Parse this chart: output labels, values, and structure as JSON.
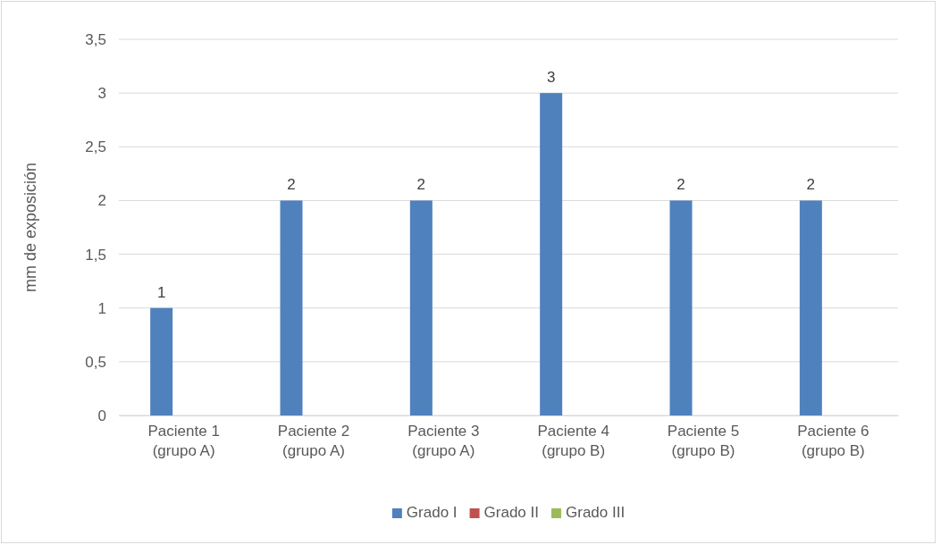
{
  "chart_data": {
    "type": "bar",
    "ylabel": "mm de exposición",
    "categories": [
      "Paciente 1 (grupo A)",
      "Paciente 2 (grupo A)",
      "Paciente 3 (grupo A)",
      "Paciente 4 (grupo B)",
      "Paciente 5 (grupo B)",
      "Paciente 6 (grupo B)"
    ],
    "series": [
      {
        "name": "Grado I",
        "color": "#4f81bd",
        "values": [
          1,
          2,
          2,
          3,
          2,
          2
        ],
        "value_labels": [
          "1",
          "2",
          "2",
          "3",
          "2",
          "2"
        ]
      },
      {
        "name": "Grado II",
        "color": "#c0504d",
        "values": [
          null,
          null,
          null,
          null,
          null,
          null
        ]
      },
      {
        "name": "Grado III",
        "color": "#9bbb59",
        "values": [
          null,
          null,
          null,
          null,
          null,
          null
        ]
      }
    ],
    "ylim": [
      0,
      3.5
    ],
    "yticks": [
      0,
      {
        "value": 0.5,
        "label": "0,5"
      },
      1,
      {
        "value": 1.5,
        "label": "1,5"
      },
      2,
      {
        "value": 2.5,
        "label": "2,5"
      },
      3,
      {
        "value": 3.5,
        "label": "3,5"
      }
    ],
    "grid": "y",
    "legend": "bottom"
  }
}
